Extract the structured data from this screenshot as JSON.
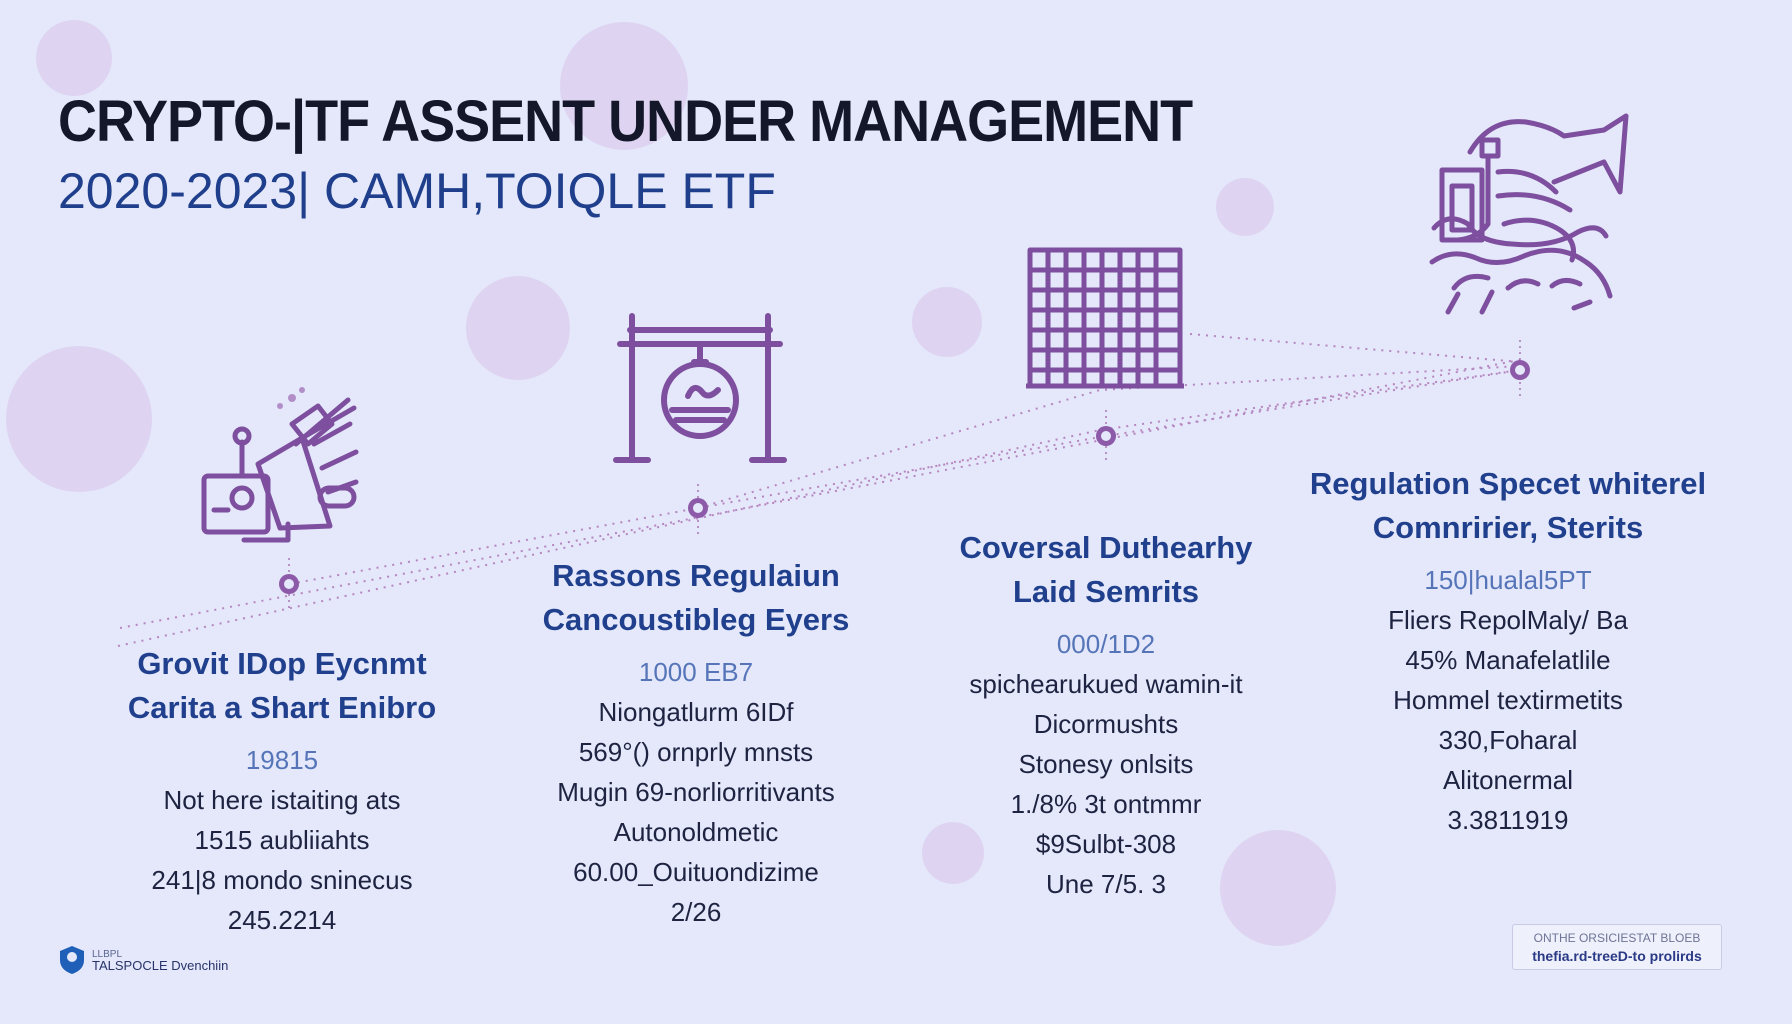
{
  "header": {
    "title": "CRYPTO-|TF ASSENT UNDER MANAGEMENT",
    "subtitle": "2020-2023| CAMH,TOIQLE ETF"
  },
  "colors": {
    "background": "#e4e8fa",
    "accent_purple": "#7d4f9e",
    "heading_blue": "#203f8d",
    "title_dark": "#14162a",
    "bubble": "#dccdef"
  },
  "columns": [
    {
      "icon": "megaphone-and-monitor-icon",
      "heading": [
        "Grovit IDop Eycnmt",
        "Carita a Shart Enibro"
      ],
      "value": "19815",
      "lines": [
        "Not here istaiting ats",
        "1515 aubliiahts",
        "241|8 mondo sninecus",
        "245.2214"
      ]
    },
    {
      "icon": "gate-with-coin-icon",
      "heading": [
        "Rassons Regulaiun",
        "Cancoustibleg Eyers"
      ],
      "value": "1000 EB7",
      "lines": [
        "Niongatlurm 6IDf",
        "569°() ornprly mnsts",
        "Mugin 69-norliorritivants",
        "Autonoldmetic",
        "60.00_Ouituondizime",
        "2/26"
      ]
    },
    {
      "icon": "building-grid-icon",
      "heading": [
        "Coversal Duthearhy",
        "Laid Semrits"
      ],
      "value": "000/1D2",
      "lines": [
        "spichearukued wamin-it",
        "Dicormushts",
        "Stonesy onlsits",
        "1./8% 3t ontmmr",
        "$9Sulbt-308",
        "Une 7/5. 3"
      ]
    },
    {
      "icon": "regulation-machine-icon",
      "heading": [
        "Regulation Specet whiterel",
        "Comnririer, Sterits"
      ],
      "value": "150|hualal5PT",
      "lines": [
        "Fliers RepolMaly/ Ba",
        "45% Manafelatlile",
        "Hommel textirmetits",
        "330,Foharal",
        "Alitonermal",
        "3.3811919"
      ]
    }
  ],
  "footer": {
    "brand_small": "LLBPL",
    "brand_main": "TALSPOCLE Dvenchiin",
    "brand_icon": "shield-pin-icon",
    "badge_top": "ONTHE ORSICIESTAT BLOEB",
    "badge_bottom": "thefia.rd-treeD-to prolirds"
  }
}
